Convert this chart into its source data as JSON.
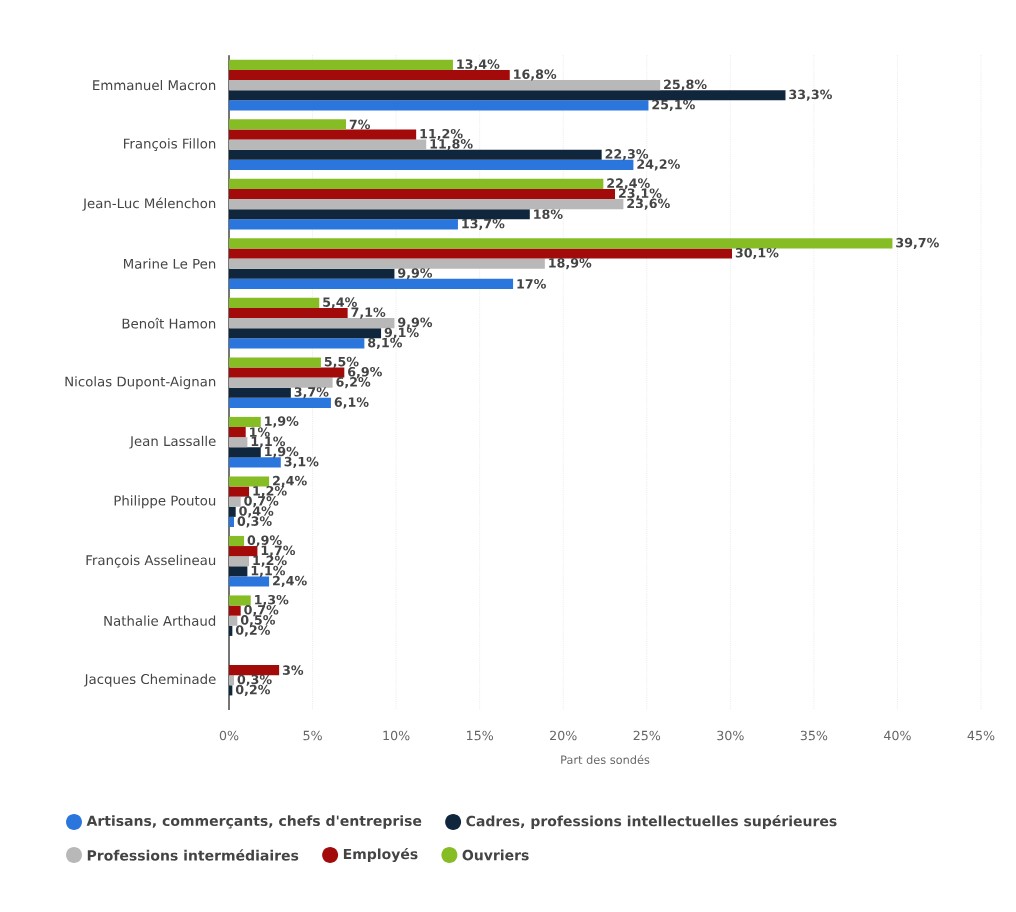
{
  "chart_data": {
    "type": "bar",
    "orientation": "horizontal",
    "xlabel": "Part des sondés",
    "xlim": [
      0,
      45
    ],
    "xticks": [
      {
        "value": 0,
        "label": "0%"
      },
      {
        "value": 5,
        "label": "5%"
      },
      {
        "value": 10,
        "label": "10%"
      },
      {
        "value": 15,
        "label": "15%"
      },
      {
        "value": 20,
        "label": "20%"
      },
      {
        "value": 25,
        "label": "25%"
      },
      {
        "value": 30,
        "label": "30%"
      },
      {
        "value": 35,
        "label": "35%"
      },
      {
        "value": 40,
        "label": "40%"
      },
      {
        "value": 45,
        "label": "45%"
      }
    ],
    "grid": "x",
    "legend": "bottom",
    "categories": [
      "Emmanuel Macron",
      "François Fillon",
      "Jean-Luc Mélenchon",
      "Marine Le Pen",
      "Benoît Hamon",
      "Nicolas Dupont-Aignan",
      "Jean Lassalle",
      "Philippe Poutou",
      "François Asselineau",
      "Nathalie Arthaud",
      "Jacques Cheminade"
    ],
    "series": [
      {
        "name": "Artisans, commerçants, chefs d'entreprise",
        "color": "#2a76dd",
        "values": [
          25.1,
          24.2,
          13.7,
          17,
          8.1,
          6.1,
          3.1,
          0.3,
          2.4,
          null,
          null
        ],
        "value_labels": [
          "25,1%",
          "24,2%",
          "13,7%",
          "17%",
          "8,1%",
          "6,1%",
          "3,1%",
          "0,3%",
          "2,4%",
          null,
          null
        ]
      },
      {
        "name": "Cadres, professions intellectuelles supérieures",
        "color": "#10263d",
        "values": [
          33.3,
          22.3,
          18,
          9.9,
          9.1,
          3.7,
          1.9,
          0.4,
          1.1,
          0.2,
          0.2
        ],
        "value_labels": [
          "33,3%",
          "22,3%",
          "18%",
          "9,9%",
          "9,1%",
          "3,7%",
          "1,9%",
          "0,4%",
          "1,1%",
          "0,2%",
          "0,2%"
        ]
      },
      {
        "name": "Professions intermédiaires",
        "color": "#b8b8b8",
        "values": [
          25.8,
          11.8,
          23.6,
          18.9,
          9.9,
          6.2,
          1.1,
          0.7,
          1.2,
          0.5,
          0.3
        ],
        "value_labels": [
          "25,8%",
          "11,8%",
          "23,6%",
          "18,9%",
          "9,9%",
          "6,2%",
          "1,1%",
          "0,7%",
          "1,2%",
          "0,5%",
          "0,3%"
        ]
      },
      {
        "name": "Employés",
        "color": "#a30b0b",
        "values": [
          16.8,
          11.2,
          23.1,
          30.1,
          7.1,
          6.9,
          1,
          1.2,
          1.7,
          0.7,
          3
        ],
        "value_labels": [
          "16,8%",
          "11,2%",
          "23,1%",
          "30,1%",
          "7,1%",
          "6,9%",
          "1%",
          "1,2%",
          "1,7%",
          "0,7%",
          "3%"
        ]
      },
      {
        "name": "Ouvriers",
        "color": "#86bc24",
        "values": [
          13.4,
          7,
          22.4,
          39.7,
          5.4,
          5.5,
          1.9,
          2.4,
          0.9,
          1.3,
          null
        ],
        "value_labels": [
          "13,4%",
          "7%",
          "22,4%",
          "39,7%",
          "5,4%",
          "5,5%",
          "1,9%",
          "2,4%",
          "0,9%",
          "1,3%",
          null
        ]
      }
    ]
  }
}
